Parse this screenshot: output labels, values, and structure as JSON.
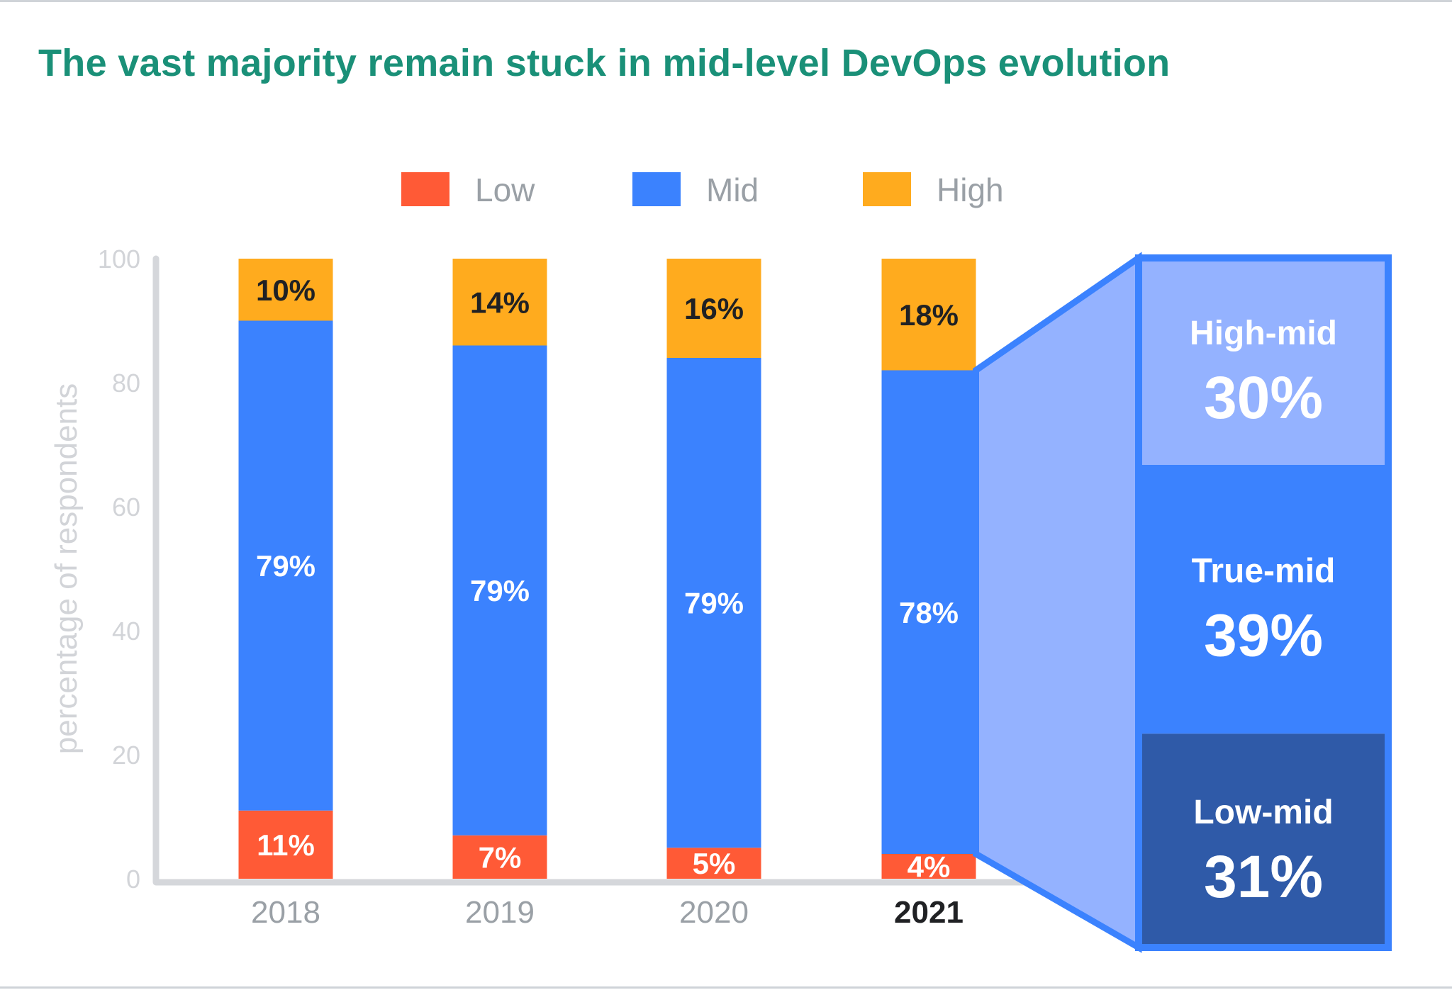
{
  "title": "The vast majority remain stuck in mid-level DevOps evolution",
  "colors": {
    "title": "#1a9078",
    "low": "#ff5a36",
    "mid": "#3b82fe",
    "high": "#ffab1e",
    "high_mid": "#94b2ff",
    "low_mid": "#2f5aa8",
    "axis": "#d5d7db",
    "tick_text": "#d2d4d8",
    "category_text": "#9aa0a6",
    "category_highlight": "#202124",
    "border_blue": "#3b82fe"
  },
  "chart_data": {
    "type": "bar",
    "stacked": true,
    "ylabel": "percentage of respondents",
    "ylim": [
      0,
      100
    ],
    "yticks": [
      "0",
      "20",
      "40",
      "60",
      "80",
      "100"
    ],
    "categories": [
      "2018",
      "2019",
      "2020",
      "2021"
    ],
    "highlight_category": "2021",
    "legend": [
      "Low",
      "Mid",
      "High"
    ],
    "series": [
      {
        "name": "Low",
        "key": "low",
        "values": [
          11,
          7,
          5,
          4
        ],
        "labels": [
          "11%",
          "7%",
          "5%",
          "4%"
        ]
      },
      {
        "name": "Mid",
        "key": "mid",
        "values": [
          79,
          79,
          79,
          78
        ],
        "labels": [
          "79%",
          "79%",
          "79%",
          "78%"
        ]
      },
      {
        "name": "High",
        "key": "high",
        "values": [
          10,
          14,
          16,
          18
        ],
        "labels": [
          "10%",
          "14%",
          "16%",
          "18%"
        ]
      }
    ],
    "breakdown": {
      "of": "Mid",
      "category": "2021",
      "segments": [
        {
          "name": "High-mid",
          "value": 30,
          "label": "30%",
          "key": "high_mid"
        },
        {
          "name": "True-mid",
          "value": 39,
          "label": "39%",
          "key": "mid"
        },
        {
          "name": "Low-mid",
          "value": 31,
          "label": "31%",
          "key": "low_mid"
        }
      ]
    }
  }
}
